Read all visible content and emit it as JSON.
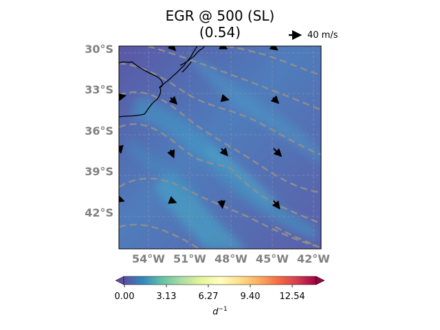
{
  "title": {
    "line1": "EGR @ 500 (SL)",
    "line2": "(0.54)"
  },
  "reference_arrow": {
    "label": "40 m/s"
  },
  "map": {
    "lat_labels": [
      "30°S",
      "33°S",
      "36°S",
      "39°S",
      "42°S"
    ],
    "lon_labels": [
      "54°W",
      "51°W",
      "48°W",
      "45°W",
      "42°W"
    ],
    "extent": {
      "lon": [
        -56.3,
        -41.7
      ],
      "lat": [
        -44.7,
        -30
      ]
    },
    "field_colormap": "Spectral_r",
    "gridlines": true
  },
  "colorbar": {
    "ticks": [
      "0.00",
      "3.13",
      "6.27",
      "9.40",
      "12.54"
    ],
    "unit_base": "d",
    "unit_exp": "−1",
    "colors": [
      "#5e4fa2",
      "#3288bd",
      "#66c2a5",
      "#abdda4",
      "#e6f598",
      "#ffffbf",
      "#fee08b",
      "#fdae61",
      "#f46d43",
      "#d53e4f",
      "#9e0142"
    ]
  }
}
